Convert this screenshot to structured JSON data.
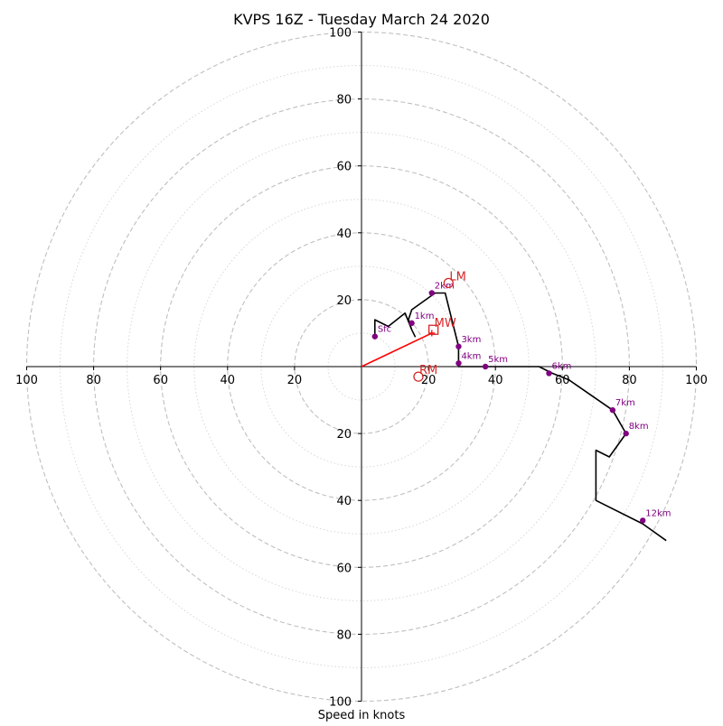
{
  "chart_data": {
    "type": "hodograph",
    "title": "KVPS 16Z - Tuesday March 24 2020",
    "xlabel": "Speed in knots",
    "ylabel": "",
    "xlim": [
      -100,
      100
    ],
    "ylim": [
      -100,
      100
    ],
    "ring_major_step": 20,
    "ring_minor_step": 10,
    "axis_tick_values": [
      20,
      40,
      60,
      80,
      100
    ],
    "axis_tick_labels": [
      "20",
      "40",
      "60",
      "80",
      "100"
    ],
    "grid": true,
    "trace": [
      [
        4,
        9
      ],
      [
        4,
        14
      ],
      [
        8,
        12
      ],
      [
        13,
        16
      ],
      [
        15,
        11
      ],
      [
        16,
        9
      ],
      [
        15,
        11
      ],
      [
        14,
        14
      ],
      [
        15,
        17
      ],
      [
        22,
        22
      ],
      [
        25,
        22
      ],
      [
        29,
        6
      ],
      [
        29,
        0
      ],
      [
        53,
        0
      ],
      [
        57,
        -2
      ],
      [
        62,
        -4
      ],
      [
        75,
        -13
      ],
      [
        79,
        -20
      ],
      [
        74,
        -27
      ],
      [
        70,
        -25
      ],
      [
        70,
        -40
      ],
      [
        84,
        -47
      ],
      [
        91,
        -52
      ]
    ],
    "labeled_points": [
      {
        "label": "Sfc",
        "u": 4,
        "v": 9
      },
      {
        "label": "1km",
        "u": 15,
        "v": 13
      },
      {
        "label": "2km",
        "u": 21,
        "v": 22
      },
      {
        "label": "3km",
        "u": 29,
        "v": 6
      },
      {
        "label": "4km",
        "u": 29,
        "v": 1
      },
      {
        "label": "5km",
        "u": 37,
        "v": 0
      },
      {
        "label": "6km",
        "u": 56,
        "v": -2
      },
      {
        "label": "7km",
        "u": 75,
        "v": -13
      },
      {
        "label": "8km",
        "u": 79,
        "v": -20
      },
      {
        "label": "12km",
        "u": 84,
        "v": -46
      }
    ],
    "mean_wind": {
      "label": "MW",
      "u": 21.5,
      "v": 11
    },
    "left_mover": {
      "label": "LM",
      "u": 26,
      "v": 25
    },
    "right_mover": {
      "label": "RM",
      "u": 17,
      "v": -3
    },
    "shear_vector": {
      "from": [
        0,
        0
      ],
      "to": [
        21,
        10
      ]
    },
    "colors": {
      "trace": "#000000",
      "points": "#800080",
      "markers": "#d62728",
      "shear": "#ff0000",
      "major_ring": "#bfbfbf",
      "minor_ring": "#d3d3d3",
      "axes": "#000000"
    }
  }
}
